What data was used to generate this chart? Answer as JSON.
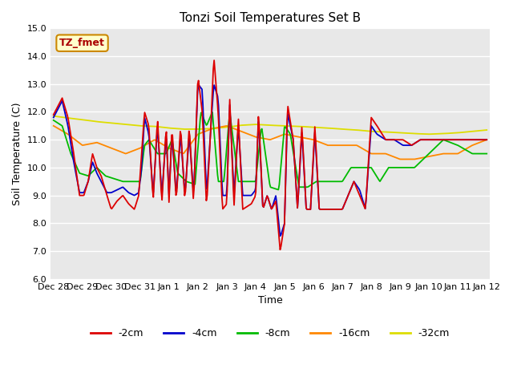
{
  "title": "Tonzi Soil Temperatures Set B",
  "xlabel": "Time",
  "ylabel": "Soil Temperature (C)",
  "ylim": [
    6.0,
    15.0
  ],
  "yticks": [
    6.0,
    7.0,
    8.0,
    9.0,
    10.0,
    11.0,
    12.0,
    13.0,
    14.0,
    15.0
  ],
  "xtick_labels": [
    "Dec 28",
    "Dec 29",
    "Dec 30",
    "Dec 31",
    "Jan 1",
    "Jan 2",
    "Jan 3",
    "Jan 4",
    "Jan 5",
    "Jan 6",
    "Jan 7",
    "Jan 8",
    "Jan 9",
    "Jan 10",
    "Jan 11",
    "Jan 12"
  ],
  "colors": {
    "-2cm": "#dd0000",
    "-4cm": "#0000cc",
    "-8cm": "#00bb00",
    "-16cm": "#ff8800",
    "-32cm": "#dddd00"
  },
  "annotation_text": "TZ_fmet",
  "annotation_color": "#aa0000",
  "annotation_bg": "#ffffcc",
  "annotation_border": "#cc8800",
  "plot_bg_color": "#e8e8e8",
  "grid_color": "#ffffff",
  "n_points": 500
}
